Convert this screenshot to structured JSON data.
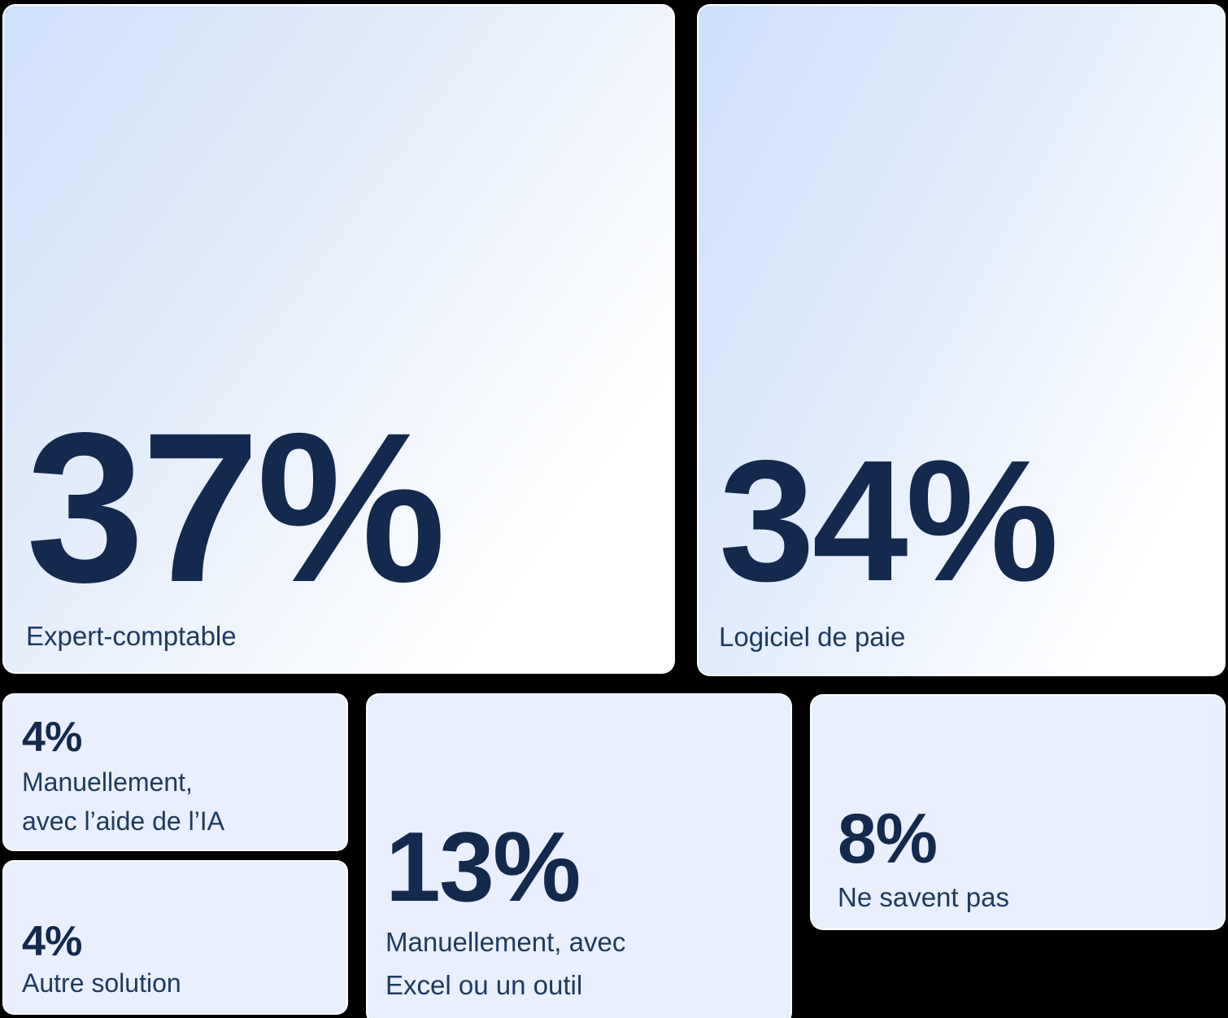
{
  "page": {
    "background": "#000000"
  },
  "style": {
    "number_color": "#13294e",
    "label_color": "#1e3a60",
    "small_card_background": "#e9effc",
    "big_card_gradient_start": "#cfe1fb",
    "big_card_gradient_end": "#ffffff",
    "card_border": "#ffffff"
  },
  "cards": [
    {
      "id": "expert-comptable",
      "value": "37%",
      "label_lines": [
        "Expert-comptable"
      ]
    },
    {
      "id": "logiciel-de-paie",
      "value": "34%",
      "label_lines": [
        "Logiciel de paie"
      ]
    },
    {
      "id": "manuellement-ia",
      "value": "4%",
      "label_lines": [
        "Manuellement,",
        "avec l’aide de l’IA"
      ]
    },
    {
      "id": "autre-solution",
      "value": "4%",
      "label_lines": [
        "Autre solution"
      ]
    },
    {
      "id": "manuellement-excel",
      "value": "13%",
      "label_lines": [
        "Manuellement, avec",
        "Excel ou un outil"
      ]
    },
    {
      "id": "ne-savent-pas",
      "value": "8%",
      "label_lines": [
        "Ne savent pas"
      ]
    }
  ],
  "chart_data": {
    "type": "treemap",
    "title": "",
    "unit": "%",
    "categories": [
      "Expert-comptable",
      "Logiciel de paie",
      "Manuellement, avec Excel ou un outil",
      "Ne savent pas",
      "Manuellement, avec l’aide de l’IA",
      "Autre solution"
    ],
    "values": [
      37,
      34,
      13,
      8,
      4,
      4
    ],
    "legend": "off",
    "layout": "two large gradient tiles on top row, four flat light-blue tiles below, tile area proportional to value"
  }
}
